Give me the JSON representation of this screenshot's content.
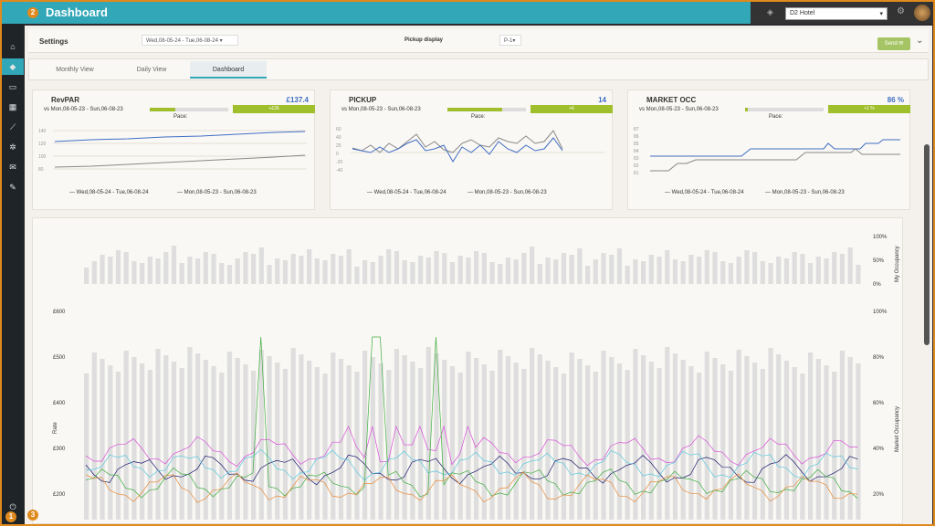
{
  "app": {
    "title": "Dashboard",
    "hotel": "D2 Hotel"
  },
  "badges": [
    "2",
    "1",
    "3"
  ],
  "sidebar": {
    "icons": [
      "home-icon",
      "diamond-icon",
      "bed-icon",
      "calendar-icon",
      "trend-icon",
      "gear-icon",
      "mail-icon",
      "wrench-icon"
    ]
  },
  "settings": {
    "label": "Settings",
    "date_range": "Wed,08-05-24 - Tue,06-08-24",
    "pickup_label": "Pickup display",
    "pickup_value": "P-1",
    "send_label": "Send"
  },
  "tabs": [
    {
      "label": "Monthly View"
    },
    {
      "label": "Daily View"
    },
    {
      "label": "Dashboard"
    }
  ],
  "cards": [
    {
      "title": "RevPAR",
      "value": "£137.4",
      "sub": "vs Mon,08-05-23 - Sun,06-08-23",
      "pace_label": "Pace:",
      "pace_badge": "+£36",
      "pace": 0.33,
      "legend": [
        "Wed,08-05-24 - Tue,06-08-24",
        "Mon,08-05-23 - Sun,06-08-23"
      ],
      "yticks": [
        "140",
        "120",
        "100",
        "80"
      ]
    },
    {
      "title": "PICKUP",
      "value": "14",
      "sub": "vs Mon,08-05-23 - Sun,06-08-23",
      "pace_label": "Pace:",
      "pace_badge": "+6",
      "pace": 0.7,
      "legend": [
        "Wed,08-05-24 - Tue,06-08-24",
        "Mon,08-05-23 - Sun,06-08-23"
      ],
      "yticks": [
        "60",
        "40",
        "20",
        "0",
        "-20",
        "-40"
      ]
    },
    {
      "title": "MARKET OCC",
      "value": "86 %",
      "sub": "vs Mon,08-05-23 - Sun,06-08-23",
      "pace_label": "Pace:",
      "pace_badge": "+1 %",
      "pace": 0.03,
      "legend": [
        "Wed,08-05-24 - Tue,06-08-24",
        "Mon,08-05-23 - Sun,06-08-23"
      ],
      "yticks": [
        "87",
        "86",
        "85",
        "84",
        "83",
        "82",
        "81"
      ]
    }
  ],
  "big": {
    "top_ticks": [
      "100%",
      "50%",
      "0%"
    ],
    "top_label": "My Occupancy",
    "left_ticks": [
      "£600",
      "£500",
      "£400",
      "£300",
      "£200"
    ],
    "left_label": "Rate",
    "right_ticks": [
      "100%",
      "80%",
      "60%",
      "40%",
      "20%"
    ],
    "right_label": "Market Occupancy"
  },
  "colors": {
    "accent": "#31a7b7",
    "frame": "#e08a1e",
    "green": "#9fbf2c",
    "blue": "#3f6ec4"
  }
}
